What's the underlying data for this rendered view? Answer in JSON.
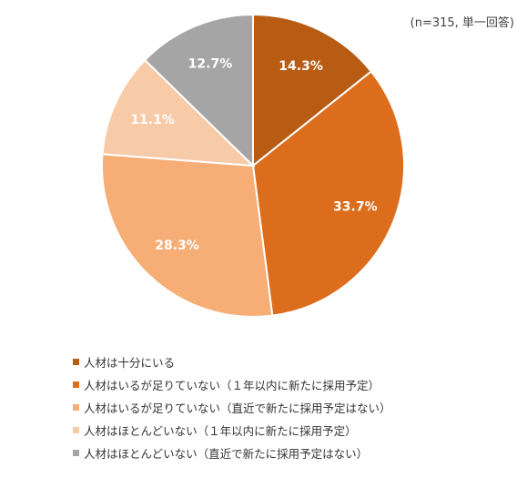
{
  "note": "(n=315, 単一回答)",
  "chart_data": {
    "type": "pie",
    "categories": [
      "人材は十分にいる",
      "人材はいるが足りていない（１年以内に新たに採用予定）",
      "人材はいるが足りていない（直近で新たに採用予定はない）",
      "人材はほとんどいない（１年以内に新たに採用予定）",
      "人材はほとんどいない（直近で新たに採用予定はない）"
    ],
    "values": [
      14.3,
      33.7,
      28.3,
      11.1,
      12.7
    ],
    "labels": [
      "14.3%",
      "33.7%",
      "28.3%",
      "11.1%",
      "12.7%"
    ],
    "colors": [
      "#B85C14",
      "#DC6D1C",
      "#F6AE76",
      "#F8CBA8",
      "#A5A5A5"
    ],
    "label_colors": [
      "#ffffff",
      "#ffffff",
      "#ffffff",
      "#ffffff",
      "#ffffff"
    ],
    "legend_position": "bottom",
    "start": "12 o'clock, clockwise"
  }
}
